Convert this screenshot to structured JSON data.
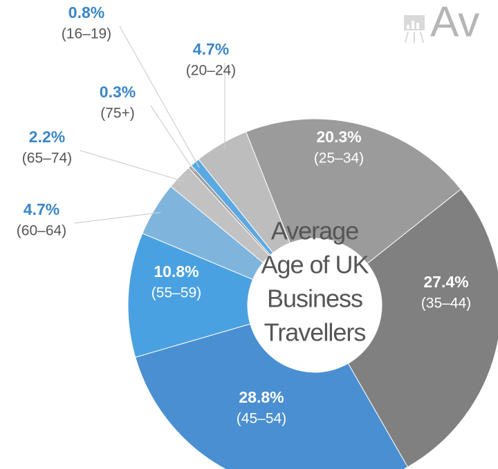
{
  "chart_data": {
    "type": "donut",
    "title": "Av",
    "center_label": [
      "Average",
      "Age of UK",
      "Business",
      "Travellers"
    ],
    "categories": [
      "(20–24)",
      "(25–34)",
      "(35–44)",
      "(45–54)",
      "(55–59)",
      "(60–64)",
      "(65–74)",
      "(75+)",
      "(16–19)"
    ],
    "values": [
      4.7,
      20.3,
      27.4,
      28.8,
      10.8,
      4.7,
      2.2,
      0.3,
      0.8
    ],
    "value_labels": [
      "4.7%",
      "20.3%",
      "27.4%",
      "28.8%",
      "10.8%",
      "4.7%",
      "2.2%",
      "0.3%",
      "0.8%"
    ],
    "colors": [
      "#bdbdbd",
      "#9b9b9b",
      "#808080",
      "#4a8fd1",
      "#4aa1e2",
      "#7fb5dd",
      "#c2c2c2",
      "#9e9e9e",
      "#5ba9e2"
    ]
  }
}
